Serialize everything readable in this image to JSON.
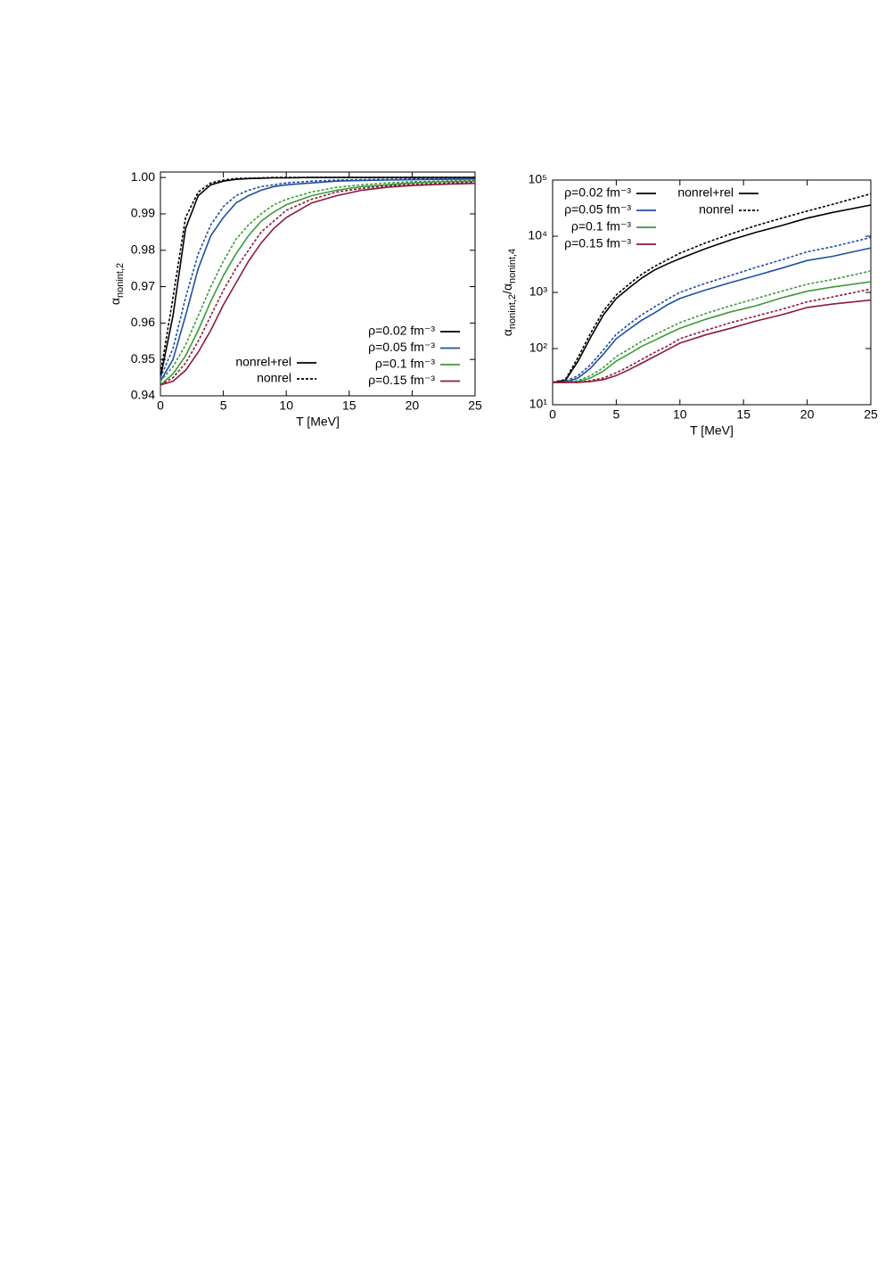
{
  "chart_data": [
    {
      "type": "line",
      "log_y": false,
      "legend": "lower right",
      "xlabel": "T [MeV]",
      "ylabel": [
        "α",
        "nonint,2"
      ],
      "xlim": [
        0,
        25
      ],
      "xticks": [
        0,
        5,
        10,
        15,
        20,
        25
      ],
      "ylim": [
        0.94,
        1.0015
      ],
      "yticks": [
        0.94,
        0.95,
        0.96,
        0.97,
        0.98,
        0.99,
        {
          "value": 1,
          "label": "1.00"
        }
      ],
      "line_styles": [
        "nonrel+rel",
        "nonrel"
      ],
      "x": [
        0,
        1,
        2,
        3,
        4,
        5,
        6,
        7,
        8,
        9,
        10,
        12,
        14,
        16,
        18,
        20,
        22,
        25
      ],
      "series": [
        {
          "name": "ρ=0.02 fm⁻³",
          "color": "#000000",
          "values": [
            0.945,
            0.962,
            0.986,
            0.995,
            0.998,
            0.999,
            0.9995,
            0.9997,
            0.9998,
            0.9999,
            0.9999,
            1,
            1,
            1,
            1,
            1,
            1,
            1
          ],
          "values_nonrel": [
            0.946,
            0.967,
            0.989,
            0.996,
            0.9985,
            0.9993,
            0.9997,
            0.9998,
            0.9999,
            1,
            1,
            1,
            1,
            1,
            1,
            1,
            1,
            1
          ]
        },
        {
          "name": "ρ=0.05 fm⁻³",
          "color": "#1f4fa0",
          "values": [
            0.944,
            0.95,
            0.962,
            0.975,
            0.984,
            0.989,
            0.993,
            0.995,
            0.9965,
            0.9975,
            0.998,
            0.9985,
            0.999,
            0.9992,
            0.9993,
            0.9994,
            0.9995,
            0.9996
          ],
          "values_nonrel": [
            0.945,
            0.953,
            0.967,
            0.979,
            0.987,
            0.992,
            0.995,
            0.9965,
            0.9975,
            0.998,
            0.9985,
            0.999,
            0.9993,
            0.9994,
            0.9995,
            0.9996,
            0.9997,
            0.9997
          ]
        },
        {
          "name": "ρ=0.1 fm⁻³",
          "color": "#3a9a3a",
          "values": [
            0.943,
            0.946,
            0.951,
            0.958,
            0.966,
            0.973,
            0.979,
            0.984,
            0.988,
            0.9905,
            0.9925,
            0.995,
            0.9965,
            0.9975,
            0.998,
            0.9985,
            0.9988,
            0.999
          ],
          "values_nonrel": [
            0.944,
            0.948,
            0.954,
            0.962,
            0.97,
            0.977,
            0.983,
            0.987,
            0.99,
            0.9925,
            0.994,
            0.996,
            0.9973,
            0.998,
            0.9985,
            0.9988,
            0.999,
            0.9992
          ]
        },
        {
          "name": "ρ=0.15 fm⁻³",
          "color": "#8b1a3c",
          "values": [
            0.943,
            0.944,
            0.947,
            0.952,
            0.958,
            0.965,
            0.971,
            0.977,
            0.982,
            0.986,
            0.989,
            0.993,
            0.995,
            0.9965,
            0.9973,
            0.9978,
            0.9981,
            0.9984
          ],
          "values_nonrel": [
            0.943,
            0.945,
            0.949,
            0.955,
            0.962,
            0.969,
            0.975,
            0.98,
            0.985,
            0.988,
            0.991,
            0.994,
            0.996,
            0.997,
            0.9977,
            0.9981,
            0.9984,
            0.9987
          ]
        }
      ]
    },
    {
      "type": "line",
      "log_y": true,
      "legend": "upper left",
      "xlabel": "T [MeV]",
      "ylabel": [
        "α",
        "nonint,2",
        "/α",
        "nonint,4"
      ],
      "xlim": [
        0,
        25
      ],
      "xticks": [
        0,
        5,
        10,
        15,
        20,
        25
      ],
      "ylim": [
        10,
        100000
      ],
      "yticks": [
        {
          "value": 10,
          "label": "10¹"
        },
        {
          "value": 100,
          "label": "10²"
        },
        {
          "value": 1000,
          "label": "10³"
        },
        {
          "value": 10000,
          "label": "10⁴"
        },
        {
          "value": 100000,
          "label": "10⁵"
        }
      ],
      "line_styles": [
        "nonrel+rel",
        "nonrel"
      ],
      "x": [
        0,
        1,
        2,
        3,
        4,
        5,
        6,
        7,
        8,
        9,
        10,
        12,
        14,
        16,
        18,
        20,
        22,
        25
      ],
      "series": [
        {
          "name": "ρ=0.02 fm⁻³",
          "color": "#000000",
          "values": [
            25,
            27,
            60,
            160,
            400,
            780,
            1200,
            1800,
            2500,
            3200,
            4000,
            6000,
            8600,
            11800,
            15500,
            21000,
            26500,
            36000
          ],
          "values_nonrel": [
            25,
            28,
            70,
            190,
            470,
            900,
            1400,
            2100,
            2900,
            3800,
            5000,
            7600,
            11000,
            15500,
            21000,
            28000,
            37000,
            57000
          ]
        },
        {
          "name": "ρ=0.05 fm⁻³",
          "color": "#1f4fa0",
          "values": [
            25,
            25,
            30,
            45,
            80,
            150,
            220,
            320,
            430,
            600,
            780,
            1100,
            1500,
            2000,
            2700,
            3700,
            4400,
            6200
          ],
          "values_nonrel": [
            25,
            26,
            33,
            52,
            95,
            180,
            270,
            400,
            550,
            750,
            1000,
            1450,
            2000,
            2800,
            3800,
            5300,
            6500,
            9500
          ]
        },
        {
          "name": "ρ=0.1 fm⁻³",
          "color": "#3a9a3a",
          "values": [
            25,
            25,
            26,
            30,
            40,
            60,
            80,
            110,
            140,
            180,
            230,
            330,
            450,
            580,
            800,
            1050,
            1250,
            1550
          ],
          "values_nonrel": [
            25,
            25,
            27,
            33,
            46,
            72,
            98,
            135,
            175,
            225,
            290,
            420,
            580,
            780,
            1050,
            1400,
            1700,
            2400
          ]
        },
        {
          "name": "ρ=0.15 fm⁻³",
          "color": "#8b1a3c",
          "values": [
            25,
            25,
            25,
            26,
            28,
            33,
            42,
            55,
            72,
            95,
            125,
            175,
            230,
            310,
            400,
            540,
            620,
            730
          ],
          "values_nonrel": [
            25,
            25,
            25,
            27,
            30,
            37,
            48,
            64,
            85,
            110,
            150,
            210,
            290,
            380,
            500,
            680,
            830,
            1150
          ]
        }
      ]
    }
  ]
}
